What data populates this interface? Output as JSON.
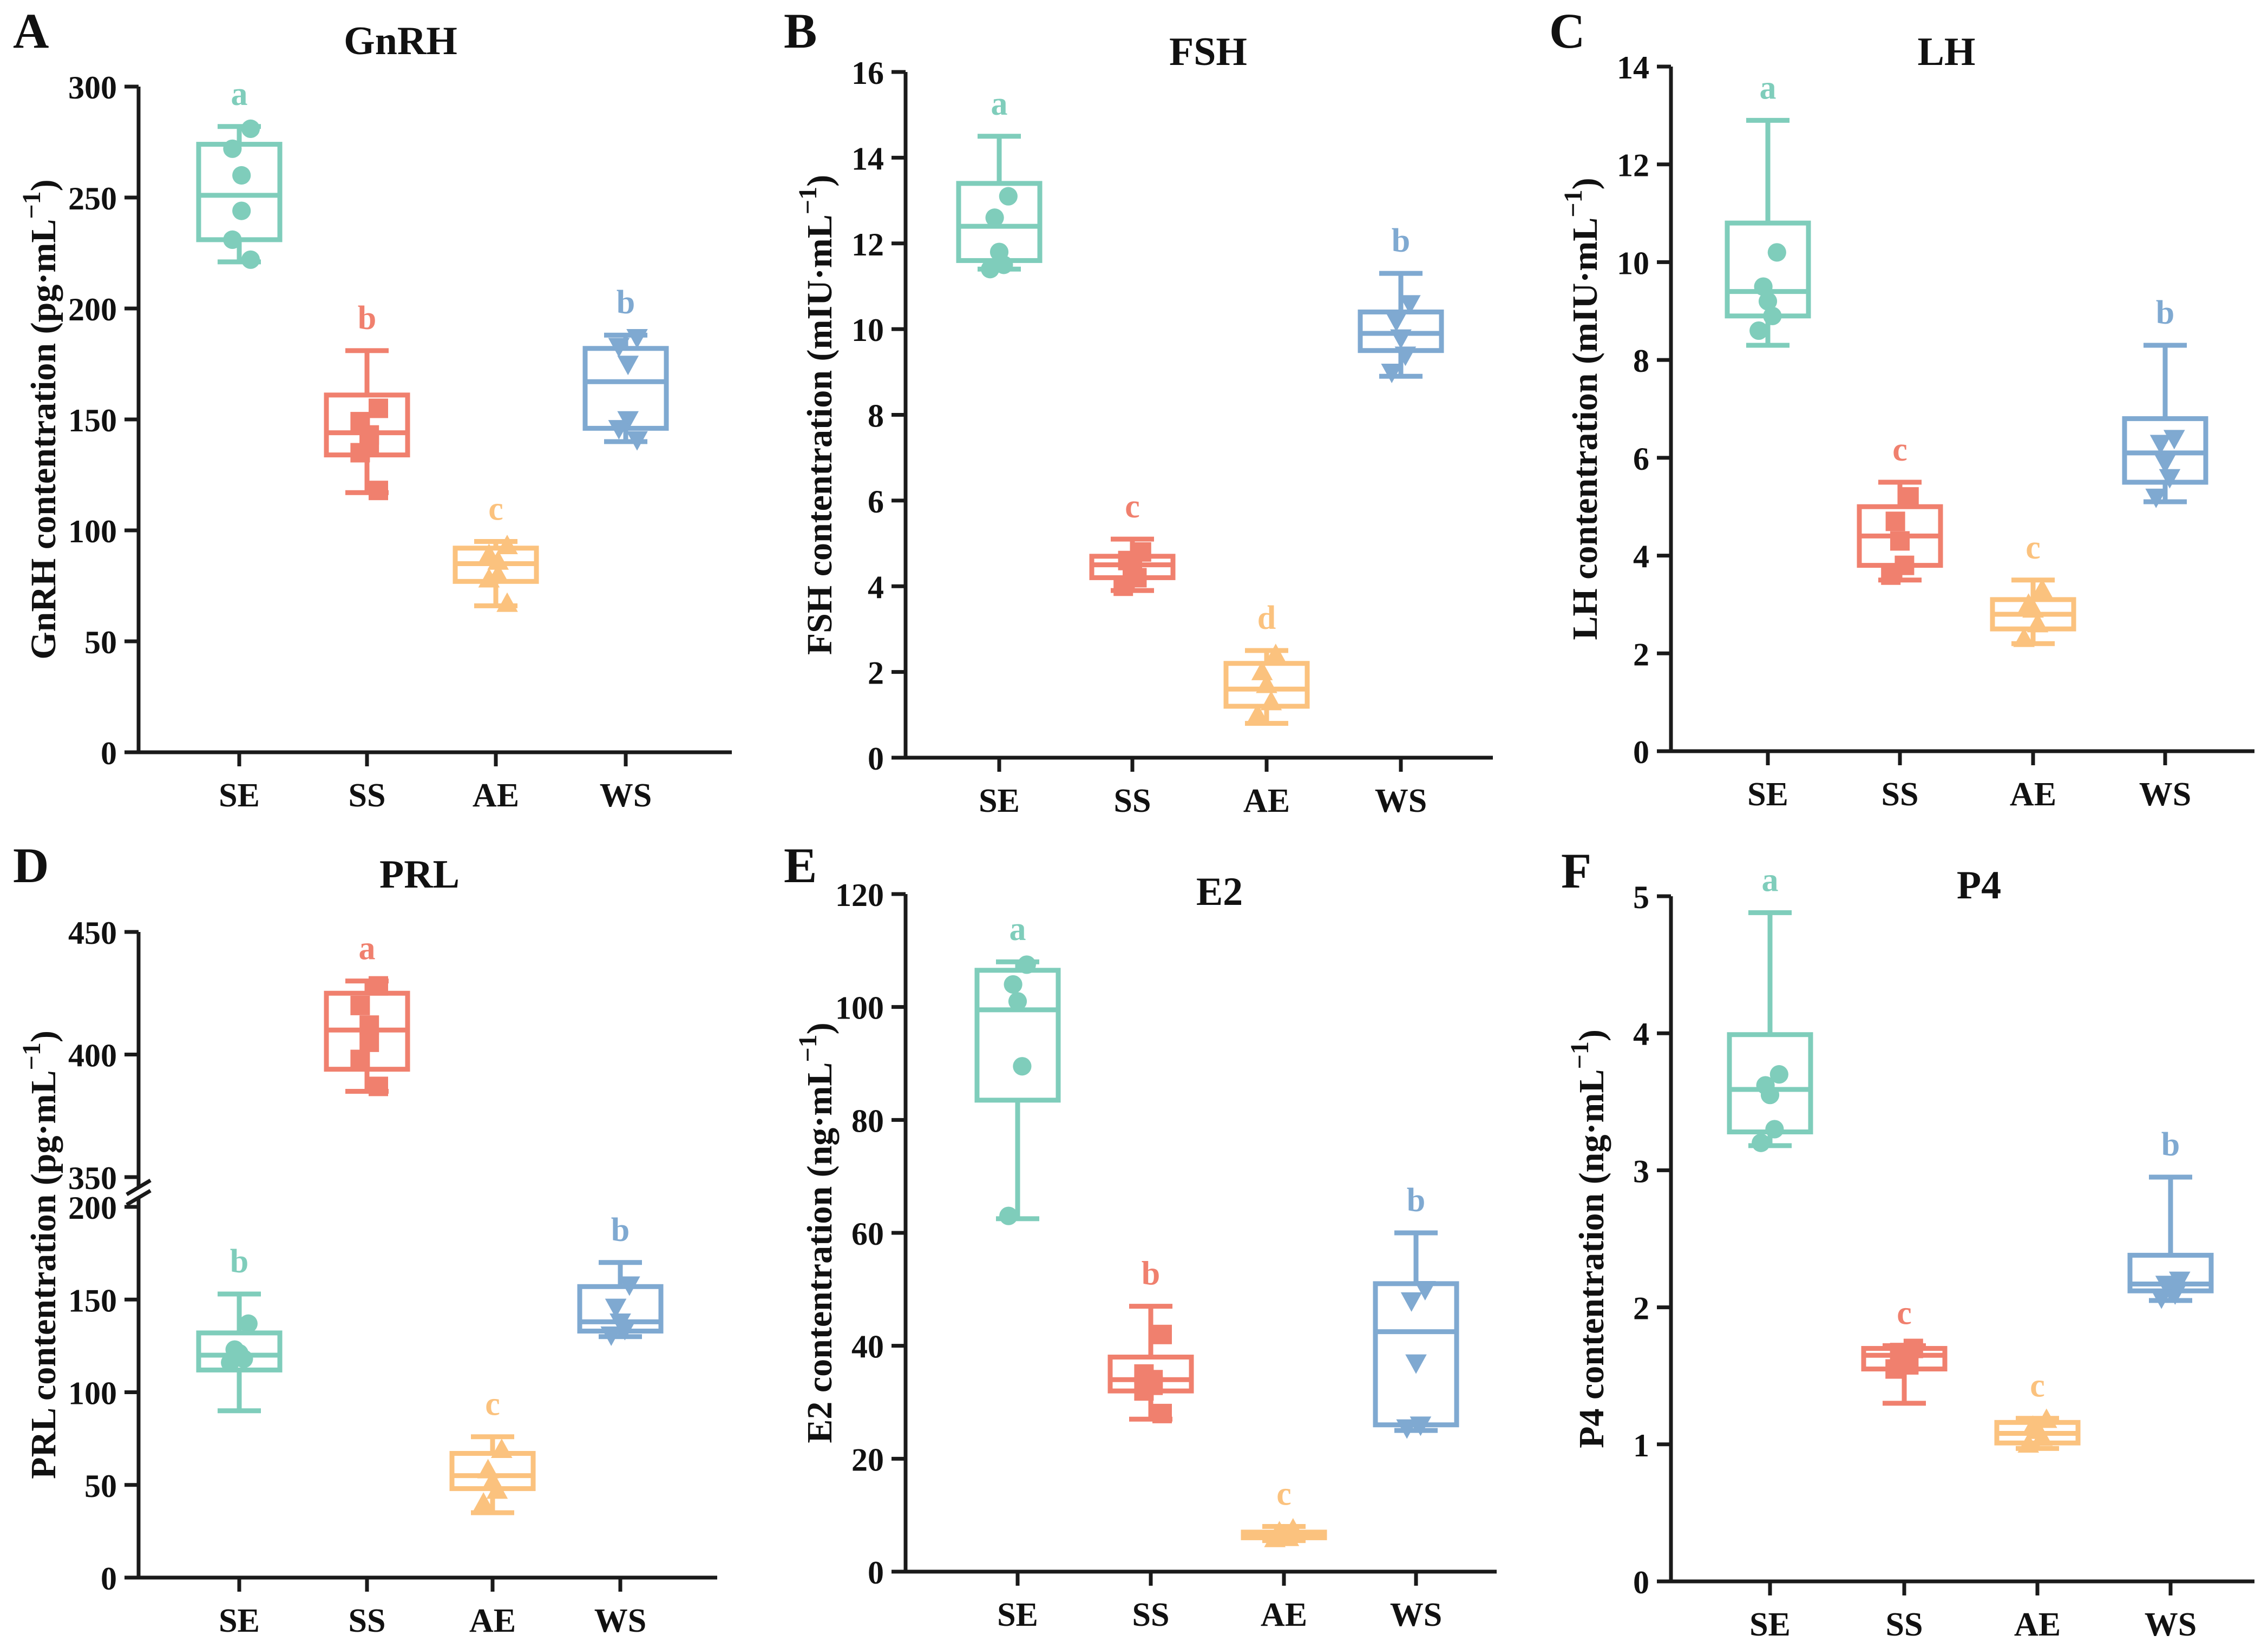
{
  "groups": [
    "SE",
    "SS",
    "AE",
    "WS"
  ],
  "colors": {
    "SE": "#7fcdbb",
    "SS": "#f0806e",
    "AE": "#fbc27e",
    "WS": "#7fa9d1"
  },
  "chart_data": [
    {
      "panel": "A",
      "title": "GnRH",
      "type": "box",
      "ylabel": "GnRH contentration (pg·mL",
      "ylabel_sup": "−1",
      "ylabel_tail": ")",
      "categories": [
        "SE",
        "SS",
        "AE",
        "WS"
      ],
      "ylim": [
        0,
        300
      ],
      "yticks": [
        0,
        50,
        100,
        150,
        200,
        250,
        300
      ],
      "boxes": [
        {
          "group": "SE",
          "min": 221,
          "q1": 231,
          "median": 251,
          "q3": 274,
          "max": 282,
          "points": [
            281,
            272,
            260,
            244,
            231,
            222
          ],
          "marker": "circle",
          "letter": "a"
        },
        {
          "group": "SS",
          "min": 117,
          "q1": 134,
          "median": 144,
          "q3": 161,
          "max": 181,
          "points": [
            155,
            149,
            143,
            139,
            135,
            118
          ],
          "marker": "square",
          "letter": "b"
        },
        {
          "group": "AE",
          "min": 66,
          "q1": 77,
          "median": 85,
          "q3": 92,
          "max": 95,
          "points": [
            93,
            89,
            86,
            80,
            78,
            67
          ],
          "marker": "triangle-up",
          "letter": "c"
        },
        {
          "group": "WS",
          "min": 140,
          "q1": 146,
          "median": 167,
          "q3": 182,
          "max": 188,
          "points": [
            187,
            183,
            175,
            150,
            146,
            141
          ],
          "marker": "triangle-down",
          "letter": "b"
        }
      ]
    },
    {
      "panel": "B",
      "title": "FSH",
      "type": "box",
      "ylabel": "FSH contentration (mIU·mL",
      "ylabel_sup": "−1",
      "ylabel_tail": ")",
      "categories": [
        "SE",
        "SS",
        "AE",
        "WS"
      ],
      "ylim": [
        0,
        16
      ],
      "yticks": [
        0,
        2,
        4,
        6,
        8,
        10,
        12,
        14,
        16
      ],
      "boxes": [
        {
          "group": "SE",
          "min": 11.4,
          "q1": 11.6,
          "median": 12.4,
          "q3": 13.4,
          "max": 14.5,
          "points": [
            13.1,
            12.6,
            11.8,
            11.5,
            11.4
          ],
          "marker": "circle",
          "letter": "a"
        },
        {
          "group": "SS",
          "min": 3.9,
          "q1": 4.2,
          "median": 4.5,
          "q3": 4.7,
          "max": 5.1,
          "points": [
            4.8,
            4.6,
            4.4,
            4.2,
            4.0
          ],
          "marker": "square",
          "letter": "c"
        },
        {
          "group": "AE",
          "min": 0.8,
          "q1": 1.2,
          "median": 1.6,
          "q3": 2.2,
          "max": 2.5,
          "points": [
            2.4,
            2.0,
            1.7,
            1.3,
            1.0
          ],
          "marker": "triangle-up",
          "letter": "d"
        },
        {
          "group": "WS",
          "min": 8.9,
          "q1": 9.5,
          "median": 9.9,
          "q3": 10.4,
          "max": 11.3,
          "points": [
            10.6,
            10.2,
            9.8,
            9.4,
            9.0
          ],
          "marker": "triangle-down",
          "letter": "b"
        }
      ]
    },
    {
      "panel": "C",
      "title": "LH",
      "type": "box",
      "ylabel": "LH contentration (mIU·mL",
      "ylabel_sup": "−1",
      "ylabel_tail": ")",
      "categories": [
        "SE",
        "SS",
        "AE",
        "WS"
      ],
      "ylim": [
        0,
        14
      ],
      "yticks": [
        0,
        2,
        4,
        6,
        8,
        10,
        12,
        14
      ],
      "boxes": [
        {
          "group": "SE",
          "min": 8.3,
          "q1": 8.9,
          "median": 9.4,
          "q3": 10.8,
          "max": 12.9,
          "points": [
            10.2,
            9.5,
            9.2,
            8.9,
            8.6
          ],
          "marker": "circle",
          "letter": "a"
        },
        {
          "group": "SS",
          "min": 3.5,
          "q1": 3.8,
          "median": 4.4,
          "q3": 5.0,
          "max": 5.5,
          "points": [
            5.2,
            4.7,
            4.3,
            3.8,
            3.6
          ],
          "marker": "square",
          "letter": "c"
        },
        {
          "group": "AE",
          "min": 2.2,
          "q1": 2.5,
          "median": 2.8,
          "q3": 3.1,
          "max": 3.5,
          "points": [
            3.3,
            3.0,
            2.9,
            2.6,
            2.3
          ],
          "marker": "triangle-up",
          "letter": "c"
        },
        {
          "group": "WS",
          "min": 5.1,
          "q1": 5.5,
          "median": 6.1,
          "q3": 6.8,
          "max": 8.3,
          "points": [
            6.4,
            6.3,
            5.9,
            5.6,
            5.2
          ],
          "marker": "triangle-down",
          "letter": "b"
        }
      ]
    },
    {
      "panel": "D",
      "title": "PRL",
      "type": "box",
      "broken_axis": true,
      "ylabel": "PRL contentration (pg·mL",
      "ylabel_sup": "−1",
      "ylabel_tail": ")",
      "categories": [
        "SE",
        "SS",
        "AE",
        "WS"
      ],
      "ylim_lower": [
        0,
        200
      ],
      "yticks_lower": [
        0,
        50,
        100,
        150,
        200
      ],
      "ylim_upper": [
        350,
        450
      ],
      "yticks_upper": [
        350,
        400,
        450
      ],
      "boxes": [
        {
          "group": "SE",
          "min": 90,
          "q1": 112,
          "median": 120,
          "q3": 132,
          "max": 153,
          "points": [
            137,
            123,
            121,
            118,
            116
          ],
          "marker": "circle",
          "letter": "b"
        },
        {
          "group": "SS",
          "min": 385,
          "q1": 394,
          "median": 410,
          "q3": 425,
          "max": 430,
          "points": [
            428,
            420,
            412,
            405,
            398,
            387
          ],
          "marker": "square",
          "letter": "a"
        },
        {
          "group": "AE",
          "min": 35,
          "q1": 48,
          "median": 55,
          "q3": 67,
          "max": 76,
          "points": [
            69,
            58,
            52,
            47,
            40
          ],
          "marker": "triangle-up",
          "letter": "c"
        },
        {
          "group": "WS",
          "min": 130,
          "q1": 133,
          "median": 138,
          "q3": 157,
          "max": 170,
          "points": [
            158,
            146,
            138,
            134,
            131
          ],
          "marker": "triangle-down",
          "letter": "b"
        }
      ]
    },
    {
      "panel": "E",
      "title": "E2",
      "type": "box",
      "ylabel": "E2  contentration (ng·mL",
      "ylabel_sup": "−1",
      "ylabel_tail": ")",
      "categories": [
        "SE",
        "SS",
        "AE",
        "WS"
      ],
      "ylim": [
        0,
        120
      ],
      "yticks": [
        0,
        20,
        40,
        60,
        80,
        100,
        120
      ],
      "boxes": [
        {
          "group": "SE",
          "min": 62.5,
          "q1": 83.5,
          "median": 99.5,
          "q3": 106.5,
          "max": 108,
          "points": [
            107.5,
            104,
            101,
            89.5,
            63
          ],
          "marker": "circle",
          "letter": "a"
        },
        {
          "group": "SS",
          "min": 27,
          "q1": 32,
          "median": 34,
          "q3": 38,
          "max": 47,
          "points": [
            42,
            35,
            34,
            33,
            32,
            28
          ],
          "marker": "square",
          "letter": "b"
        },
        {
          "group": "AE",
          "min": 5.5,
          "q1": 6,
          "median": 6.5,
          "q3": 7,
          "max": 8,
          "points": [
            7.5,
            7,
            6.5,
            6,
            5.8
          ],
          "marker": "triangle-up",
          "letter": "c"
        },
        {
          "group": "WS",
          "min": 25,
          "q1": 26,
          "median": 42.5,
          "q3": 51,
          "max": 60,
          "points": [
            50,
            48,
            37,
            26,
            25.5
          ],
          "marker": "triangle-down",
          "letter": "b"
        }
      ]
    },
    {
      "panel": "F",
      "title": "P4",
      "type": "box",
      "ylabel": "P4 contentration (ng·mL",
      "ylabel_sup": "−1",
      "ylabel_tail": ")",
      "categories": [
        "SE",
        "SS",
        "AE",
        "WS"
      ],
      "ylim": [
        0,
        5
      ],
      "yticks": [
        0,
        1,
        2,
        3,
        4,
        5
      ],
      "boxes": [
        {
          "group": "SE",
          "min": 3.18,
          "q1": 3.28,
          "median": 3.59,
          "q3": 3.99,
          "max": 4.88,
          "points": [
            3.7,
            3.62,
            3.55,
            3.3,
            3.2
          ],
          "marker": "circle",
          "letter": "a"
        },
        {
          "group": "SS",
          "min": 1.3,
          "q1": 1.55,
          "median": 1.65,
          "q3": 1.7,
          "max": 1.72,
          "points": [
            1.7,
            1.67,
            1.62,
            1.58,
            1.55
          ],
          "marker": "square",
          "letter": "c"
        },
        {
          "group": "AE",
          "min": 0.97,
          "q1": 1.01,
          "median": 1.08,
          "q3": 1.16,
          "max": 1.19,
          "points": [
            1.18,
            1.13,
            1.1,
            1.05,
            1.0
          ],
          "marker": "triangle-up",
          "letter": "c"
        },
        {
          "group": "WS",
          "min": 2.05,
          "q1": 2.12,
          "median": 2.17,
          "q3": 2.38,
          "max": 2.95,
          "points": [
            2.2,
            2.17,
            2.14,
            2.1,
            2.07
          ],
          "marker": "triangle-down",
          "letter": "b"
        }
      ]
    }
  ]
}
